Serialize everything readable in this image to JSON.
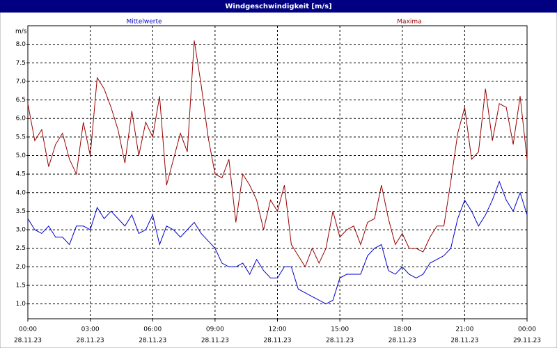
{
  "chart_data": {
    "type": "line",
    "title": "Windgeschwindigkeit [m/s]",
    "ylabel": "m/s",
    "x": [
      0,
      20,
      40,
      60,
      80,
      100,
      120,
      140,
      160,
      180,
      200,
      220,
      240,
      260,
      280,
      300,
      320,
      340,
      360,
      380,
      400,
      420,
      440,
      460,
      480,
      500,
      520,
      540,
      560,
      580,
      600,
      620,
      640,
      660,
      680,
      700,
      720,
      740,
      760,
      780,
      800,
      820,
      840,
      860,
      880,
      900,
      920,
      940,
      960,
      980,
      1000,
      1020,
      1040,
      1060,
      1080,
      1100,
      1120,
      1140,
      1160,
      1180,
      1200,
      1220,
      1240,
      1260,
      1280,
      1300,
      1320,
      1340,
      1360,
      1380,
      1400,
      1420,
      1440
    ],
    "series": [
      {
        "name": "Mittelwerte",
        "color": "#0000cc",
        "values": [
          3.3,
          3.0,
          2.9,
          3.1,
          2.8,
          2.8,
          2.6,
          3.1,
          3.1,
          3.0,
          3.6,
          3.3,
          3.5,
          3.3,
          3.1,
          3.4,
          2.9,
          3.0,
          3.4,
          2.6,
          3.1,
          3.0,
          2.8,
          3.0,
          3.2,
          2.9,
          2.7,
          2.5,
          2.1,
          2.0,
          2.0,
          2.1,
          1.8,
          2.2,
          1.9,
          1.7,
          1.7,
          2.0,
          2.0,
          1.4,
          1.3,
          1.2,
          1.1,
          1.0,
          1.1,
          1.7,
          1.8,
          1.8,
          1.8,
          2.3,
          2.5,
          2.6,
          1.9,
          1.8,
          2.0,
          1.8,
          1.7,
          1.8,
          2.1,
          2.2,
          2.3,
          2.5,
          3.3,
          3.8,
          3.5,
          3.1,
          3.4,
          3.8,
          4.3,
          3.8,
          3.5,
          4.0,
          3.4
        ]
      },
      {
        "name": "Maxima",
        "color": "#990000",
        "values": [
          6.4,
          5.4,
          5.7,
          4.7,
          5.3,
          5.6,
          4.9,
          4.5,
          5.9,
          5.0,
          7.1,
          6.8,
          6.3,
          5.7,
          4.8,
          6.2,
          5.0,
          5.9,
          5.5,
          6.6,
          4.2,
          4.9,
          5.6,
          5.1,
          8.1,
          6.9,
          5.5,
          4.5,
          4.4,
          4.9,
          3.2,
          4.5,
          4.2,
          3.8,
          3.0,
          3.8,
          3.5,
          4.2,
          2.6,
          2.3,
          2.0,
          2.5,
          2.1,
          2.5,
          3.5,
          2.8,
          3.0,
          3.1,
          2.6,
          3.2,
          3.3,
          4.2,
          3.3,
          2.6,
          2.9,
          2.5,
          2.5,
          2.4,
          2.8,
          3.1,
          3.1,
          4.3,
          5.6,
          6.3,
          4.9,
          5.1,
          6.8,
          5.4,
          6.4,
          6.3,
          5.3,
          6.6,
          4.9
        ]
      }
    ],
    "xlim": [
      0,
      1440
    ],
    "xticks": [
      {
        "value": 0,
        "label": "00:00",
        "date": "28.11.23"
      },
      {
        "value": 180,
        "label": "03:00",
        "date": "28.11.23"
      },
      {
        "value": 360,
        "label": "06:00",
        "date": "28.11.23"
      },
      {
        "value": 540,
        "label": "09:00",
        "date": "28.11.23"
      },
      {
        "value": 720,
        "label": "12:00",
        "date": "28.11.23"
      },
      {
        "value": 900,
        "label": "15:00",
        "date": "28.11.23"
      },
      {
        "value": 1080,
        "label": "18:00",
        "date": "28.11.23"
      },
      {
        "value": 1260,
        "label": "21:00",
        "date": "28.11.23"
      },
      {
        "value": 1440,
        "label": "00:00",
        "date": "29.11.23"
      }
    ],
    "ylim": [
      0.6,
      8.5
    ],
    "yticks": [
      {
        "value": 1,
        "label": "1.0"
      },
      1.5,
      {
        "value": 2,
        "label": "2.0"
      },
      2.5,
      {
        "value": 3,
        "label": "3.0"
      },
      3.5,
      {
        "value": 4,
        "label": "4.0"
      },
      4.5,
      {
        "value": 5,
        "label": "5.0"
      },
      5.5,
      {
        "value": 6,
        "label": "6.0"
      },
      6.5,
      {
        "value": 7,
        "label": "7.0"
      },
      7.5,
      {
        "value": 8,
        "label": "8.0"
      }
    ],
    "grid": true
  }
}
